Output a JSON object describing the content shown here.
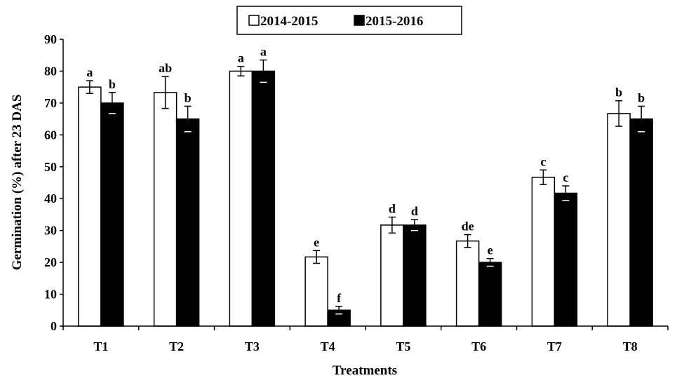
{
  "chart_data": {
    "type": "bar",
    "title": "",
    "xlabel": "Treatments",
    "ylabel": "Germination (%) after 23 DAS",
    "ylim": [
      0,
      90
    ],
    "yticks": [
      0,
      10,
      20,
      30,
      40,
      50,
      60,
      70,
      80,
      90
    ],
    "categories": [
      "T1",
      "T2",
      "T3",
      "T4",
      "T5",
      "T6",
      "T7",
      "T8"
    ],
    "legend_position": "top-center",
    "grid": false,
    "series": [
      {
        "name": "2014-2015",
        "fill": "#ffffff",
        "values": [
          75,
          73.3,
          80,
          21.7,
          31.7,
          26.7,
          46.7,
          66.7
        ],
        "errors": [
          2,
          5,
          1.5,
          2,
          2.5,
          2,
          2.3,
          4
        ],
        "letters": [
          "a",
          "ab",
          "a",
          "e",
          "d",
          "de",
          "c",
          "b"
        ]
      },
      {
        "name": "2015-2016",
        "fill": "#000000",
        "values": [
          70,
          65,
          80,
          5,
          31.7,
          20,
          41.7,
          65
        ],
        "errors": [
          3.3,
          4,
          3.5,
          1.2,
          1.7,
          1.2,
          2.3,
          4
        ],
        "letters": [
          "b",
          "b",
          "a",
          "f",
          "d",
          "e",
          "c",
          "b"
        ]
      }
    ]
  }
}
